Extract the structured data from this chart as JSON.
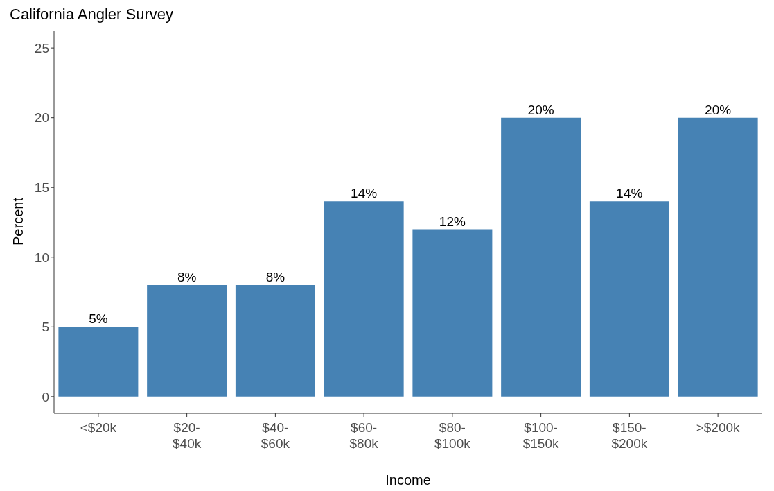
{
  "chart_data": {
    "type": "bar",
    "title": "California Angler Survey",
    "xlabel": "Income",
    "ylabel": "Percent",
    "categories": [
      "<$20k",
      "$20-\n$40k",
      "$40-\n$60k",
      "$60-\n$80k",
      "$80-\n$100k",
      "$100-\n$150k",
      "$150-\n$200k",
      ">$200k"
    ],
    "values": [
      5,
      8,
      8,
      14,
      12,
      20,
      14,
      20
    ],
    "value_labels": [
      "5%",
      "8%",
      "8%",
      "14%",
      "12%",
      "20%",
      "14%",
      "20%"
    ],
    "color": "#4682b4",
    "ylim": [
      -1.2,
      26.2
    ],
    "yticks": [
      0,
      5,
      10,
      15,
      20,
      25
    ],
    "grid": false,
    "legend": false
  }
}
